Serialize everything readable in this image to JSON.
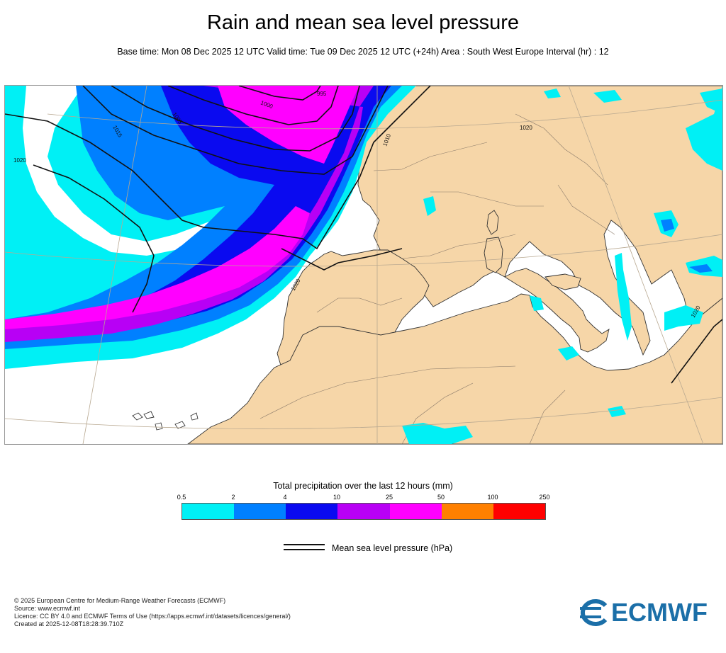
{
  "header": {
    "title": "Rain and mean sea level pressure",
    "subtitle": "Base time: Mon 08 Dec 2025 12 UTC Valid time: Tue 09 Dec 2025 12 UTC (+24h) Area : South West Europe Interval (hr) : 12"
  },
  "map": {
    "area": "South West Europe",
    "isobar_labels": [
      "1020",
      "1015",
      "1005",
      "1000",
      "995",
      "1010",
      "1020",
      "1020",
      "1020"
    ],
    "colors": {
      "land": "#f6d6a8",
      "sea": "#ffffff",
      "coastline": "#333333",
      "isobar": "#111111",
      "graticule": "#b8a890"
    }
  },
  "legend": {
    "title": "Total precipitation over the last 12 hours (mm)",
    "ticks": [
      "0.5",
      "2",
      "4",
      "10",
      "25",
      "50",
      "100",
      "250"
    ],
    "colors": [
      "#00f0f5",
      "#0080ff",
      "#0a0af0",
      "#b800f5",
      "#ff00ff",
      "#ff8000",
      "#ff0000"
    ],
    "mslp_label": "Mean sea level pressure (hPa)"
  },
  "footer": {
    "lines": [
      "© 2025 European Centre for Medium-Range Weather Forecasts (ECMWF)",
      "Source: www.ecmwf.int",
      "Licence: CC BY 4.0 and ECMWF Terms of Use (https://apps.ecmwf.int/datasets/licences/general/)",
      "Created at 2025-12-08T18:28:39.710Z"
    ]
  },
  "logo": {
    "text": "ECMWF"
  }
}
